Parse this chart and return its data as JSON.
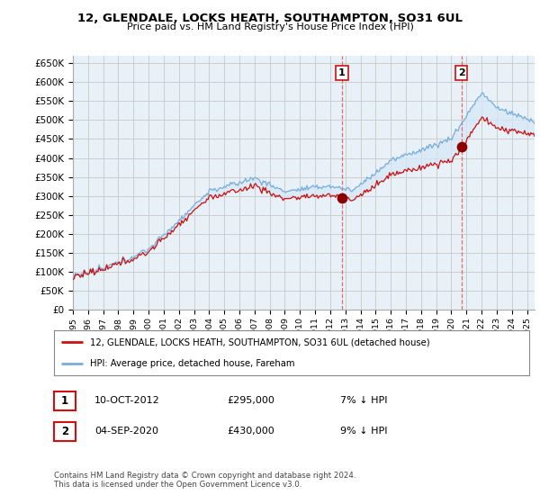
{
  "title": "12, GLENDALE, LOCKS HEATH, SOUTHAMPTON, SO31 6UL",
  "subtitle": "Price paid vs. HM Land Registry's House Price Index (HPI)",
  "ylim": [
    0,
    670000
  ],
  "yticks": [
    0,
    50000,
    100000,
    150000,
    200000,
    250000,
    300000,
    350000,
    400000,
    450000,
    500000,
    550000,
    600000,
    650000
  ],
  "ytick_labels": [
    "£0",
    "£50K",
    "£100K",
    "£150K",
    "£200K",
    "£250K",
    "£300K",
    "£350K",
    "£400K",
    "£450K",
    "£500K",
    "£550K",
    "£600K",
    "£650K"
  ],
  "hpi_color": "#7aaed6",
  "price_color": "#cc1111",
  "fill_color": "#d6e8f7",
  "vline_color": "#e06060",
  "background_color": "#ffffff",
  "grid_color": "#cccccc",
  "plot_bg_color": "#e8f0f8",
  "legend_label_price": "12, GLENDALE, LOCKS HEATH, SOUTHAMPTON, SO31 6UL (detached house)",
  "legend_label_hpi": "HPI: Average price, detached house, Fareham",
  "annotation_1_date": "10-OCT-2012",
  "annotation_1_price": "£295,000",
  "annotation_1_hpi": "7% ↓ HPI",
  "annotation_1_year": 2012.78,
  "annotation_1_value": 295000,
  "annotation_2_date": "04-SEP-2020",
  "annotation_2_price": "£430,000",
  "annotation_2_hpi": "9% ↓ HPI",
  "annotation_2_year": 2020.67,
  "annotation_2_value": 430000,
  "footer_text": "Contains HM Land Registry data © Crown copyright and database right 2024.\nThis data is licensed under the Open Government Licence v3.0.",
  "xmin": 1995,
  "xmax": 2025.5
}
